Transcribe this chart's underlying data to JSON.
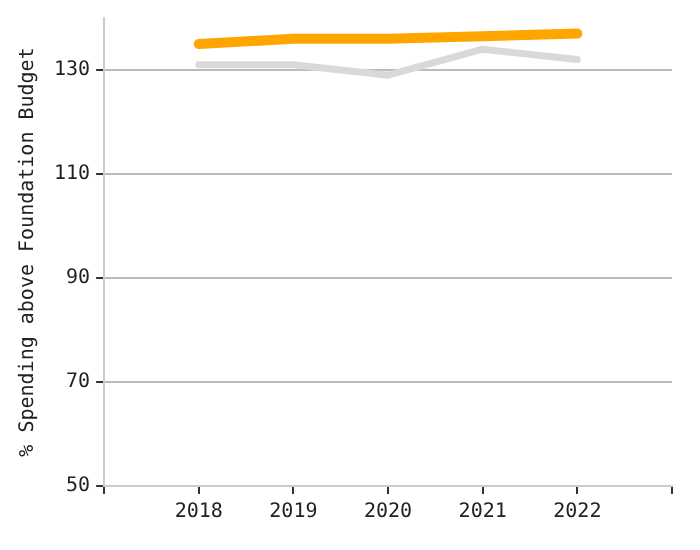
{
  "chart_data": {
    "type": "line",
    "ylabel": "% Spending above Foundation Budget",
    "x": [
      2018,
      2019,
      2020,
      2021,
      2022
    ],
    "xlim": [
      2017,
      2023
    ],
    "xticks": [
      {
        "value": 2017,
        "label": null
      },
      2018,
      2019,
      2020,
      2021,
      2022,
      {
        "value": 2023,
        "label": null
      }
    ],
    "ylim": [
      50,
      140
    ],
    "yticks": [
      50,
      70,
      90,
      110,
      130
    ],
    "grid": "y",
    "marker": "none",
    "series": [
      {
        "color": "#d9d9d9",
        "values": [
          131,
          131,
          129,
          134,
          132
        ]
      },
      {
        "color": "#ffa500",
        "values": [
          135,
          136,
          136,
          136.5,
          137
        ]
      }
    ]
  }
}
